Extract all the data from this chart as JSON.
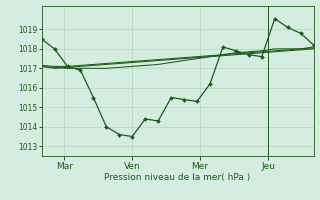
{
  "title": "",
  "xlabel": "Pression niveau de la mer( hPa )",
  "ylabel": "",
  "ylim": [
    1012.5,
    1020.2
  ],
  "yticks": [
    1013,
    1014,
    1015,
    1016,
    1017,
    1018,
    1019
  ],
  "bg_color": "#d4ede0",
  "grid_color": "#b8d4c0",
  "line_color": "#1a5c1a",
  "tick_label_color": "#1a5c1a",
  "xlabel_color": "#1a5c1a",
  "day_labels": [
    "Mar",
    "Ven",
    "Mer",
    "Jeu"
  ],
  "day_positions": [
    0.083,
    0.333,
    0.583,
    0.833
  ],
  "series": [
    [
      1018.5,
      1018.0,
      1017.1,
      1016.9,
      1015.5,
      1014.0,
      1013.6,
      1013.5,
      1014.4,
      1014.3,
      1015.5,
      1015.4,
      1015.3,
      1016.2,
      1018.1,
      1017.9,
      1017.7,
      1017.6,
      1019.55,
      1019.1,
      1018.8,
      1018.2
    ],
    [
      1017.1,
      1017.05,
      1017.0,
      1017.0,
      1017.0,
      1017.0,
      1017.05,
      1017.1,
      1017.15,
      1017.2,
      1017.3,
      1017.4,
      1017.5,
      1017.6,
      1017.7,
      1017.8,
      1017.85,
      1017.9,
      1018.0,
      1018.0,
      1018.0,
      1018.1
    ],
    [
      1017.1,
      1017.0,
      1017.05,
      1017.1,
      1017.15,
      1017.2,
      1017.25,
      1017.3,
      1017.35,
      1017.4,
      1017.45,
      1017.5,
      1017.55,
      1017.6,
      1017.65,
      1017.7,
      1017.75,
      1017.8,
      1017.85,
      1017.9,
      1017.95,
      1018.0
    ],
    [
      1017.15,
      1017.1,
      1017.1,
      1017.15,
      1017.2,
      1017.25,
      1017.3,
      1017.35,
      1017.4,
      1017.45,
      1017.5,
      1017.55,
      1017.6,
      1017.65,
      1017.7,
      1017.75,
      1017.8,
      1017.85,
      1017.9,
      1017.95,
      1018.0,
      1018.05
    ]
  ]
}
